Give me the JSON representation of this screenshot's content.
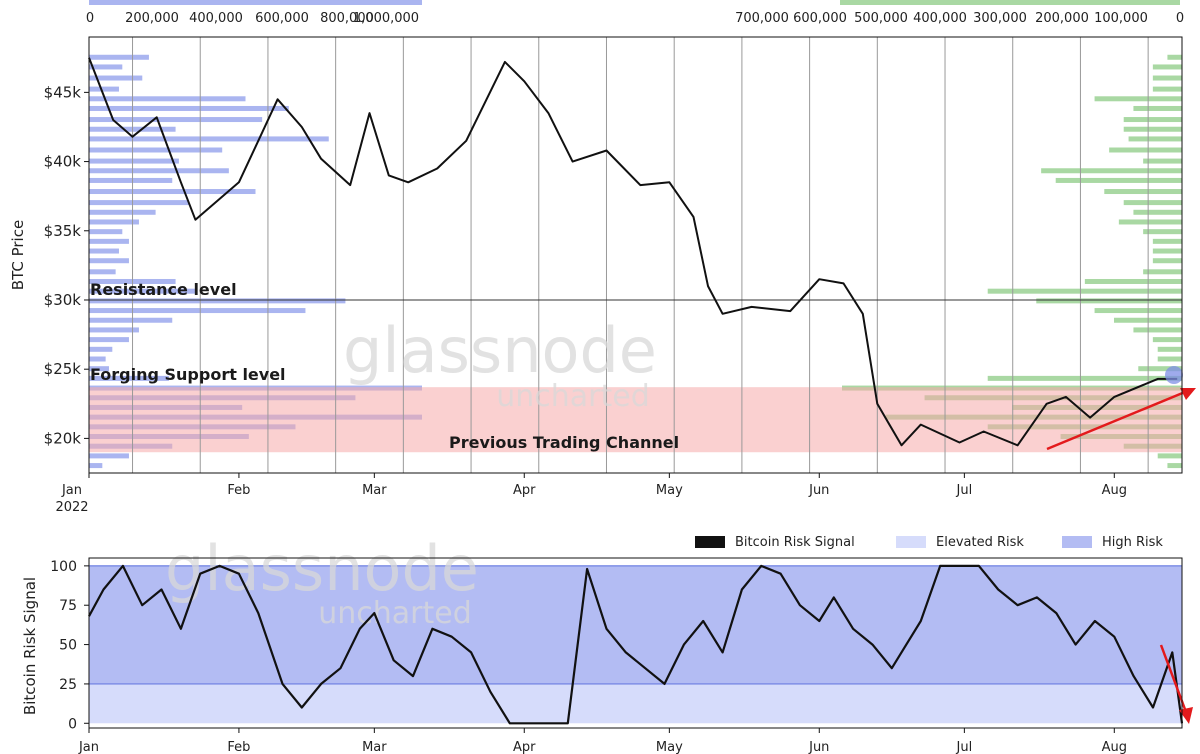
{
  "chart_data": [
    {
      "type": "line",
      "ylabel": "BTC Price",
      "ylim": [
        17500,
        49000
      ],
      "ytick_labels": [
        "$20k",
        "$25k",
        "$30k",
        "$35k",
        "$40k",
        "$45k"
      ],
      "ytick_values": [
        20000,
        25000,
        30000,
        35000,
        40000,
        45000
      ],
      "xtick_labels": [
        "Jan",
        "Feb",
        "Mar",
        "Apr",
        "May",
        "Jun",
        "Jul",
        "Aug"
      ],
      "x_year_label": "2022",
      "x_range": [
        "2022-01-01",
        "2022-08-15"
      ],
      "grid": "vertical-lines",
      "annotations": {
        "resistance": "Resistance level",
        "support": "Forging Support level",
        "channel": "Previous Trading Channel"
      },
      "resistance_value": 30000,
      "channel_range": [
        19000,
        23700
      ],
      "watermark": {
        "main": "glassnode",
        "sub": "uncharted"
      },
      "series": [
        {
          "x": [
            "2022-01-01",
            "2022-01-06",
            "2022-01-10",
            "2022-01-15",
            "2022-01-20",
            "2022-01-23",
            "2022-01-27",
            "2022-02-01",
            "2022-02-05",
            "2022-02-09",
            "2022-02-14",
            "2022-02-18",
            "2022-02-24",
            "2022-02-28",
            "2022-03-04",
            "2022-03-08",
            "2022-03-14",
            "2022-03-20",
            "2022-03-28",
            "2022-04-01",
            "2022-04-06",
            "2022-04-11",
            "2022-04-18",
            "2022-04-25",
            "2022-05-01",
            "2022-05-06",
            "2022-05-09",
            "2022-05-12",
            "2022-05-18",
            "2022-05-26",
            "2022-06-01",
            "2022-06-06",
            "2022-06-10",
            "2022-06-13",
            "2022-06-18",
            "2022-06-22",
            "2022-06-30",
            "2022-07-05",
            "2022-07-12",
            "2022-07-18",
            "2022-07-22",
            "2022-07-27",
            "2022-08-01",
            "2022-08-10",
            "2022-08-14"
          ],
          "values": [
            47500,
            43000,
            41800,
            43200,
            38500,
            35800,
            37000,
            38500,
            41500,
            44500,
            42500,
            40200,
            38300,
            43500,
            39000,
            38500,
            39500,
            41500,
            47200,
            45800,
            43500,
            40000,
            40800,
            38300,
            38500,
            36000,
            31000,
            29000,
            29500,
            29200,
            31500,
            31200,
            29000,
            22500,
            19500,
            21000,
            19700,
            20500,
            19500,
            22500,
            23000,
            21500,
            23000,
            24300,
            24300
          ]
        }
      ],
      "volume_profile_left_axis": {
        "tick_labels": [
          "0",
          "200,000",
          "400,000",
          "600,000",
          "800,000",
          "1,000,000"
        ],
        "tick_values": [
          0,
          200000,
          400000,
          600000,
          800000,
          1000000
        ],
        "color": "#aab5f0"
      },
      "volume_profile_right_axis": {
        "tick_labels": [
          "700,000",
          "600,000",
          "500,000",
          "400,000",
          "300,000",
          "200,000",
          "100,000",
          "0"
        ],
        "tick_values": [
          700000,
          600000,
          500000,
          400000,
          300000,
          200000,
          100000,
          0
        ],
        "color": "#a9d8a3"
      }
    },
    {
      "type": "line",
      "ylabel": "Bitcoin Risk Signal",
      "ylim": [
        -3,
        105
      ],
      "ytick_labels": [
        "0",
        "25",
        "50",
        "75",
        "100"
      ],
      "ytick_values": [
        0,
        25,
        50,
        75,
        100
      ],
      "xtick_labels": [
        "Jan",
        "Feb",
        "Mar",
        "Apr",
        "May",
        "Jun",
        "Jul",
        "Aug"
      ],
      "bands": [
        {
          "name": "Elevated Risk",
          "range": [
            0,
            25
          ],
          "color": "#d6dcfb"
        },
        {
          "name": "High Risk",
          "range": [
            25,
            100
          ],
          "color": "#b3bcf3"
        }
      ],
      "legend": {
        "position": "top-right",
        "entries": [
          "Bitcoin Risk Signal",
          "Elevated Risk",
          "High Risk"
        ]
      },
      "watermark": {
        "main": "glassnode",
        "sub": "uncharted"
      },
      "series": [
        {
          "name": "Bitcoin Risk Signal",
          "x": [
            "2022-01-01",
            "2022-01-04",
            "2022-01-08",
            "2022-01-12",
            "2022-01-16",
            "2022-01-20",
            "2022-01-24",
            "2022-01-28",
            "2022-02-01",
            "2022-02-05",
            "2022-02-10",
            "2022-02-14",
            "2022-02-18",
            "2022-02-22",
            "2022-02-26",
            "2022-03-01",
            "2022-03-05",
            "2022-03-09",
            "2022-03-13",
            "2022-03-17",
            "2022-03-21",
            "2022-03-25",
            "2022-03-29",
            "2022-04-01",
            "2022-04-04",
            "2022-04-07",
            "2022-04-08",
            "2022-04-10",
            "2022-04-14",
            "2022-04-18",
            "2022-04-22",
            "2022-04-26",
            "2022-04-30",
            "2022-05-04",
            "2022-05-08",
            "2022-05-12",
            "2022-05-16",
            "2022-05-20",
            "2022-05-24",
            "2022-05-28",
            "2022-06-01",
            "2022-06-04",
            "2022-06-08",
            "2022-06-12",
            "2022-06-16",
            "2022-06-19",
            "2022-06-22",
            "2022-06-26",
            "2022-06-30",
            "2022-07-04",
            "2022-07-08",
            "2022-07-12",
            "2022-07-16",
            "2022-07-20",
            "2022-07-24",
            "2022-07-28",
            "2022-08-01",
            "2022-08-05",
            "2022-08-09",
            "2022-08-13",
            "2022-08-15"
          ],
          "values": [
            68,
            85,
            100,
            75,
            85,
            60,
            95,
            100,
            95,
            70,
            25,
            10,
            25,
            35,
            60,
            70,
            40,
            30,
            60,
            55,
            45,
            20,
            0,
            0,
            0,
            0,
            0,
            0,
            98,
            60,
            45,
            35,
            25,
            50,
            65,
            45,
            85,
            100,
            95,
            75,
            65,
            80,
            60,
            50,
            35,
            50,
            65,
            100,
            100,
            100,
            85,
            75,
            80,
            70,
            50,
            65,
            55,
            30,
            10,
            45,
            0
          ]
        }
      ]
    }
  ]
}
